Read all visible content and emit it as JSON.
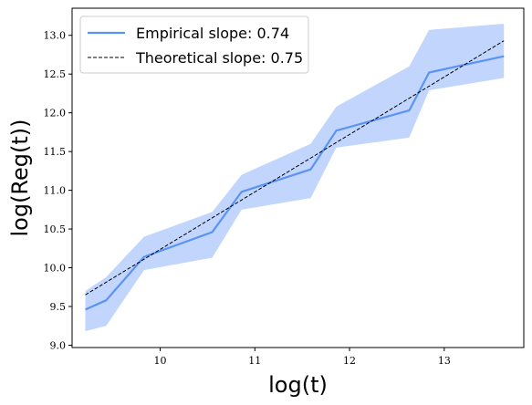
{
  "chart_data": {
    "type": "line",
    "xlabel": "log(t)",
    "ylabel": "log(Reg(t))",
    "xlim": [
      9.07,
      13.84
    ],
    "ylim": [
      8.97,
      13.35
    ],
    "xticks": [
      "10",
      "11",
      "12",
      "13"
    ],
    "yticks": [
      "9.0",
      "9.5",
      "10.0",
      "10.5",
      "11.0",
      "11.5",
      "12.0",
      "12.5",
      "13.0"
    ],
    "legend_position": "top-left",
    "series": [
      {
        "name": "Empirical slope: 0.74",
        "style": "solid",
        "color": "#5b93f5",
        "x": [
          9.21,
          9.43,
          9.83,
          10.55,
          10.86,
          11.59,
          11.86,
          12.63,
          12.84,
          13.63
        ],
        "y": [
          9.46,
          9.58,
          10.14,
          10.46,
          10.98,
          11.27,
          11.77,
          12.03,
          12.52,
          12.73
        ],
        "band_upper": [
          9.7,
          9.88,
          10.4,
          10.72,
          11.2,
          11.6,
          12.08,
          12.6,
          13.07,
          13.15
        ],
        "band_lower": [
          9.18,
          9.25,
          9.97,
          10.13,
          10.75,
          10.9,
          11.55,
          11.68,
          12.29,
          12.45
        ]
      },
      {
        "name": "Theoretical slope: 0.75",
        "style": "dashed",
        "color": "#000000",
        "x": [
          9.21,
          13.63
        ],
        "y": [
          9.65,
          12.93
        ]
      }
    ],
    "band_color": "#c2d6fd"
  }
}
